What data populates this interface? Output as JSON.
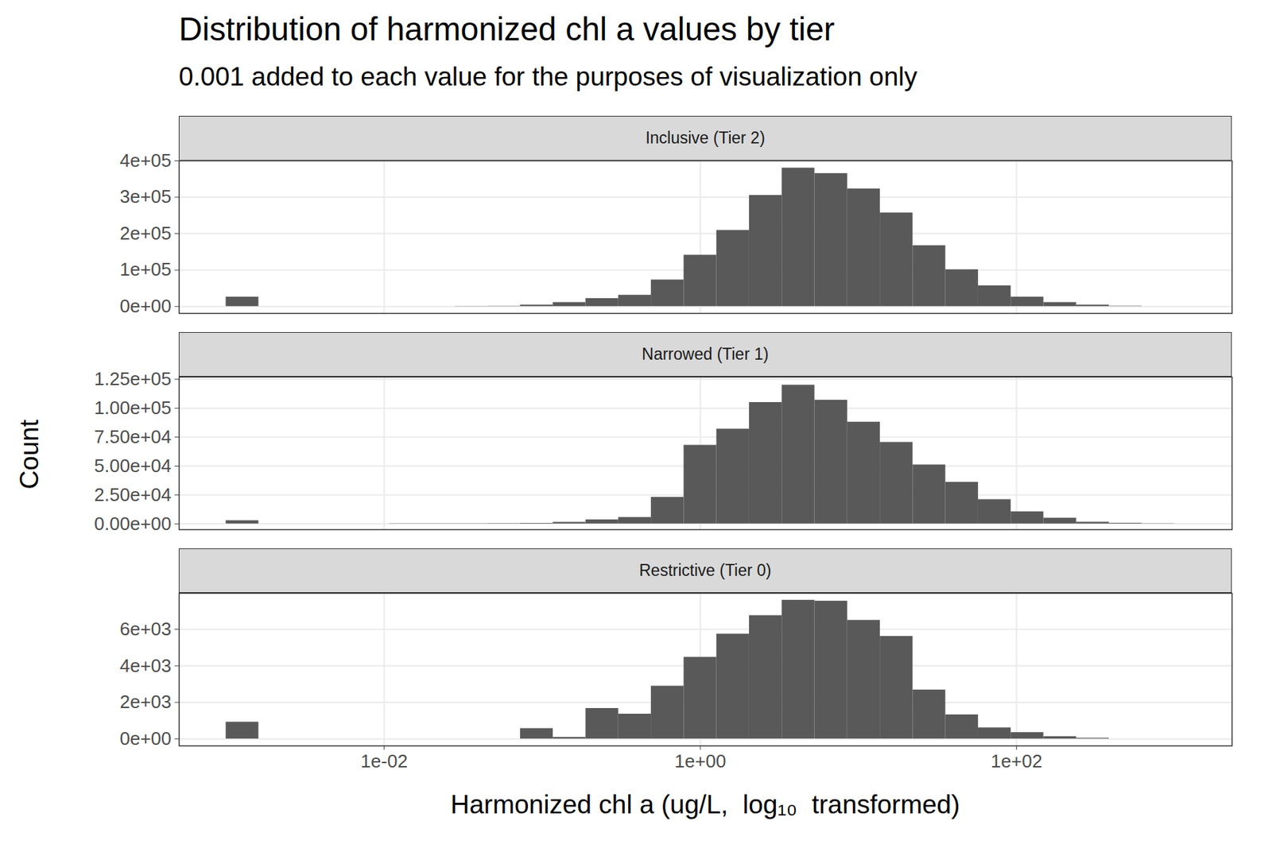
{
  "chart_data": {
    "type": "histogram",
    "title": "Distribution of harmonized chl a values by tier",
    "subtitle": "0.001 added to each value for the purposes of visualization only",
    "x_label": "Harmonized chl a (ug/L,  log₁₀  transformed)",
    "y_label": "Count",
    "log": "x",
    "grid": true,
    "color": "#595959",
    "xlim": [
      0.000505,
      2310
    ],
    "xticks": [
      {
        "value": 0.01,
        "label": "1e-02"
      },
      {
        "value": 1,
        "label": "1e+00"
      },
      {
        "value": 100,
        "label": "1e+02"
      }
    ],
    "bins": [
      0.001,
      0.00161,
      0.002593,
      0.004175,
      0.006723,
      0.01083,
      0.01743,
      0.02807,
      0.0452,
      0.07279,
      0.1172,
      0.1887,
      0.3039,
      0.4894,
      0.788,
      1.269,
      2.043,
      3.29,
      5.298,
      8.532,
      13.74,
      22.12,
      35.62,
      57.36,
      92.36,
      148.7,
      239.5,
      385.6,
      621,
      1000
    ],
    "panels": [
      {
        "title": "Inclusive (Tier 2)",
        "values": [
          26000,
          0,
          0,
          0,
          0,
          0,
          0,
          500,
          800,
          4000,
          11000,
          22000,
          31000,
          73000,
          141000,
          209000,
          305000,
          380000,
          365000,
          323000,
          257000,
          167000,
          101000,
          57000,
          26000,
          11000,
          4000,
          1000,
          0
        ],
        "ylim": [
          -19000,
          400000
        ],
        "yticks": [
          {
            "value": 0,
            "label": "0e+00"
          },
          {
            "value": 100000,
            "label": "1e+05"
          },
          {
            "value": 200000,
            "label": "2e+05"
          },
          {
            "value": 300000,
            "label": "3e+05"
          },
          {
            "value": 400000,
            "label": "4e+05"
          }
        ]
      },
      {
        "title": "Narrowed (Tier 1)",
        "values": [
          2800,
          0,
          0,
          0,
          0,
          200,
          200,
          200,
          300,
          500,
          1400,
          3500,
          5600,
          23000,
          68000,
          82000,
          105000,
          120000,
          107000,
          88000,
          70500,
          51000,
          36000,
          21000,
          10500,
          5000,
          1500,
          600,
          200
        ],
        "ylim": [
          -5000,
          127000
        ],
        "yticks": [
          {
            "value": 0,
            "label": "0.00e+00"
          },
          {
            "value": 25000,
            "label": "2.50e+04"
          },
          {
            "value": 50000,
            "label": "5.00e+04"
          },
          {
            "value": 75000,
            "label": "7.50e+04"
          },
          {
            "value": 100000,
            "label": "1.00e+05"
          },
          {
            "value": 125000,
            "label": "1.25e+05"
          }
        ]
      },
      {
        "title": "Restrictive (Tier 0)",
        "values": [
          920,
          0,
          0,
          0,
          0,
          0,
          0,
          0,
          0,
          570,
          90,
          1670,
          1360,
          2890,
          4470,
          5740,
          6750,
          7590,
          7540,
          6490,
          5610,
          2680,
          1320,
          610,
          350,
          130,
          40,
          0,
          0
        ],
        "ylim": [
          -380,
          7970
        ],
        "yticks": [
          {
            "value": 0,
            "label": "0e+00"
          },
          {
            "value": 2000,
            "label": "2e+03"
          },
          {
            "value": 4000,
            "label": "4e+03"
          },
          {
            "value": 6000,
            "label": "6e+03"
          }
        ]
      }
    ]
  }
}
